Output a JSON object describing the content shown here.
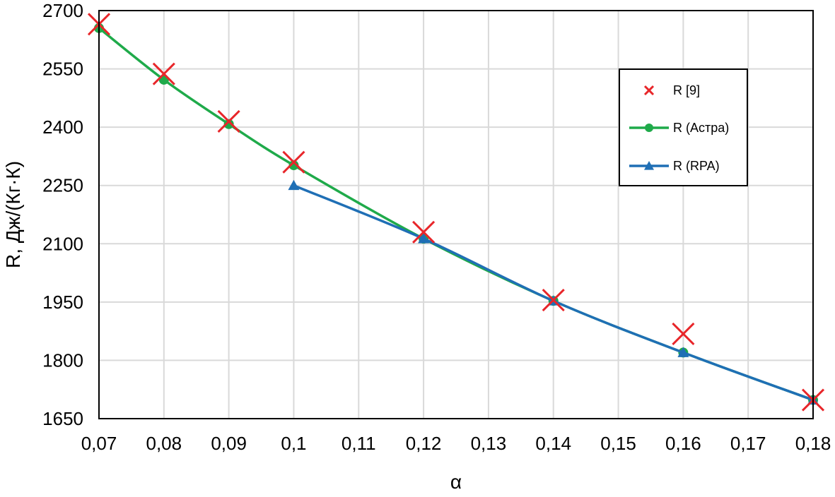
{
  "chart_data": {
    "type": "line",
    "xlabel": "α",
    "ylabel": "R, Дж/(Кг·К)",
    "xlim": [
      0.07,
      0.18
    ],
    "ylim": [
      1650,
      2700
    ],
    "x_ticks": [
      0.07,
      0.08,
      0.09,
      0.1,
      0.11,
      0.12,
      0.13,
      0.14,
      0.15,
      0.16,
      0.17,
      0.18
    ],
    "x_tick_labels": [
      "0,07",
      "0,08",
      "0,09",
      "0,1",
      "0,11",
      "0,12",
      "0,13",
      "0,14",
      "0,15",
      "0,16",
      "0,17",
      "0,18"
    ],
    "y_ticks": [
      1650,
      1800,
      1950,
      2100,
      2250,
      2400,
      2550,
      2700
    ],
    "y_tick_labels": [
      "1650",
      "1800",
      "1950",
      "2100",
      "2250",
      "2400",
      "2550",
      "2700"
    ],
    "grid": true,
    "legend_position": "top-right",
    "series": [
      {
        "name": "R [9]",
        "marker": "x",
        "line": false,
        "color": "#e8262a",
        "x": [
          0.07,
          0.08,
          0.09,
          0.1,
          0.12,
          0.14,
          0.16,
          0.18
        ],
        "y": [
          2665,
          2537,
          2415,
          2310,
          2130,
          1955,
          1868,
          1698
        ]
      },
      {
        "name": "R (Астра)",
        "marker": "circle",
        "line": true,
        "color": "#1faa4a",
        "x": [
          0.07,
          0.08,
          0.09,
          0.1,
          0.12,
          0.14,
          0.16,
          0.18
        ],
        "y": [
          2655,
          2522,
          2408,
          2302,
          2113,
          1953,
          1820,
          1698
        ]
      },
      {
        "name": "R (RPA)",
        "marker": "triangle",
        "line": true,
        "color": "#1f6fb5",
        "x": [
          0.1,
          0.12,
          0.14,
          0.16,
          0.18
        ],
        "y": [
          2250,
          2113,
          1953,
          1820,
          1698
        ]
      }
    ]
  }
}
